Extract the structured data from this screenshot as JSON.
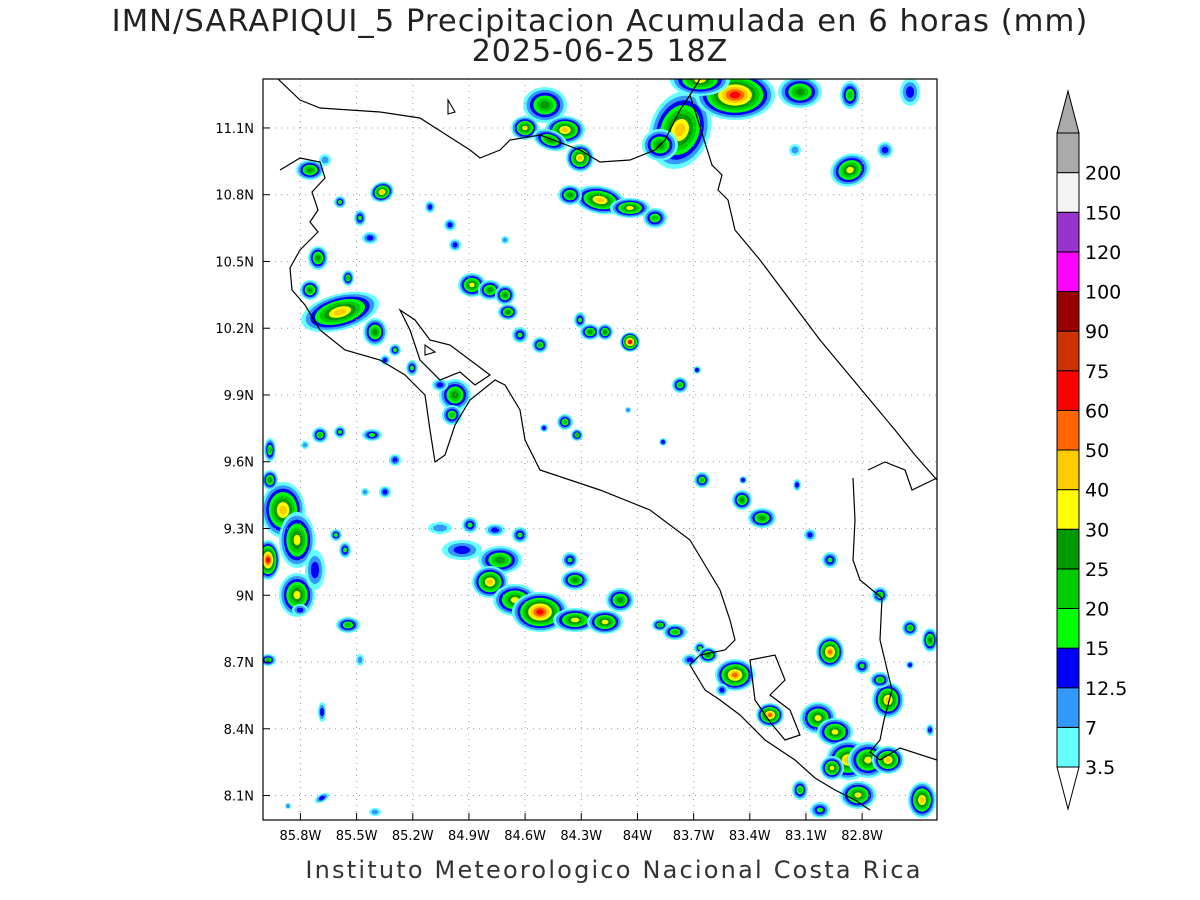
{
  "header": {
    "title_line1": "IMN/SARAPIQUI_5 Precipitacion Acumulada en 6 horas (mm)",
    "title_line2": "2025-06-25 18Z"
  },
  "footer": {
    "credit": "Instituto Meteorologico Nacional Costa Rica"
  },
  "map": {
    "lat_ticks": [
      "11.1N",
      "10.8N",
      "10.5N",
      "10.2N",
      "9.9N",
      "9.6N",
      "9.3N",
      "9N",
      "8.7N",
      "8.4N",
      "8.1N"
    ],
    "lon_ticks": [
      "85.8W",
      "85.5W",
      "85.2W",
      "84.9W",
      "84.6W",
      "84.3W",
      "84W",
      "83.7W",
      "83.4W",
      "83.1W",
      "82.8W"
    ],
    "lon_range": [
      -86.0,
      -82.4
    ],
    "lat_range": [
      7.99,
      11.32
    ],
    "gridlines": "dotted"
  },
  "colorbar": {
    "levels": [
      {
        "label": "3.5",
        "color": "#66ffff"
      },
      {
        "label": "7",
        "color": "#3399ff"
      },
      {
        "label": "12.5",
        "color": "#0000ff"
      },
      {
        "label": "15",
        "color": "#00ff00"
      },
      {
        "label": "20",
        "color": "#00cc00"
      },
      {
        "label": "25",
        "color": "#009900"
      },
      {
        "label": "30",
        "color": "#ffff00"
      },
      {
        "label": "40",
        "color": "#ffcc00"
      },
      {
        "label": "50",
        "color": "#ff6600"
      },
      {
        "label": "60",
        "color": "#ff0000"
      },
      {
        "label": "75",
        "color": "#cc3300"
      },
      {
        "label": "90",
        "color": "#990000"
      },
      {
        "label": "100",
        "color": "#ff00ff"
      },
      {
        "label": "120",
        "color": "#9933cc"
      },
      {
        "label": "150",
        "color": "#f4f4f4"
      },
      {
        "label": "200",
        "color": "#aaaaaa"
      }
    ],
    "under_color": "#ffffff",
    "over_color": "#aaaaaa"
  }
}
